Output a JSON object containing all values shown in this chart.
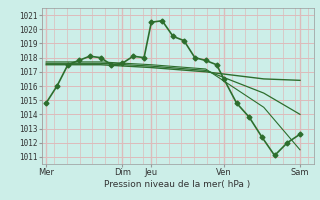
{
  "title": "",
  "xlabel": "Pression niveau de la mer( hPa )",
  "ylabel": "",
  "bg_color": "#cceee8",
  "grid_color": "#ddbbbb",
  "line_color": "#2d6e2d",
  "ylim": [
    1010.5,
    1021.5
  ],
  "yticks": [
    1011,
    1012,
    1013,
    1014,
    1015,
    1016,
    1017,
    1018,
    1019,
    1020,
    1021
  ],
  "day_labels": [
    "Mer",
    "",
    "",
    "Dim",
    "Jeu",
    "",
    "",
    "Ven",
    "",
    "Sam"
  ],
  "day_x": [
    0,
    24,
    48,
    84,
    116,
    140,
    164,
    196,
    240,
    280
  ],
  "vline_x": [
    0,
    84,
    116,
    196,
    280
  ],
  "xlim": [
    -5,
    295
  ],
  "series": [
    {
      "x": [
        0,
        12,
        24,
        36,
        48,
        60,
        72,
        84,
        96,
        108,
        116,
        128,
        140,
        152,
        164,
        176,
        188,
        196,
        210,
        224,
        238,
        252,
        266,
        280
      ],
      "y": [
        1014.8,
        1016.0,
        1017.5,
        1017.8,
        1018.1,
        1018.0,
        1017.5,
        1017.6,
        1018.1,
        1018.0,
        1020.5,
        1020.6,
        1019.5,
        1019.2,
        1018.0,
        1017.8,
        1017.5,
        1016.5,
        1014.8,
        1013.8,
        1012.4,
        1011.1,
        1012.0,
        1012.6
      ],
      "marker": "D",
      "markersize": 2.5,
      "linewidth": 1.2
    },
    {
      "x": [
        0,
        60,
        116,
        176,
        240,
        280
      ],
      "y": [
        1017.5,
        1017.5,
        1017.3,
        1017.0,
        1016.5,
        1016.4
      ],
      "marker": null,
      "linewidth": 1.0
    },
    {
      "x": [
        0,
        60,
        116,
        176,
        240,
        280
      ],
      "y": [
        1017.6,
        1017.6,
        1017.4,
        1017.1,
        1015.5,
        1014.0
      ],
      "marker": null,
      "linewidth": 0.9
    },
    {
      "x": [
        0,
        60,
        116,
        176,
        240,
        280
      ],
      "y": [
        1017.7,
        1017.7,
        1017.5,
        1017.2,
        1014.5,
        1011.5
      ],
      "marker": null,
      "linewidth": 0.8
    }
  ]
}
